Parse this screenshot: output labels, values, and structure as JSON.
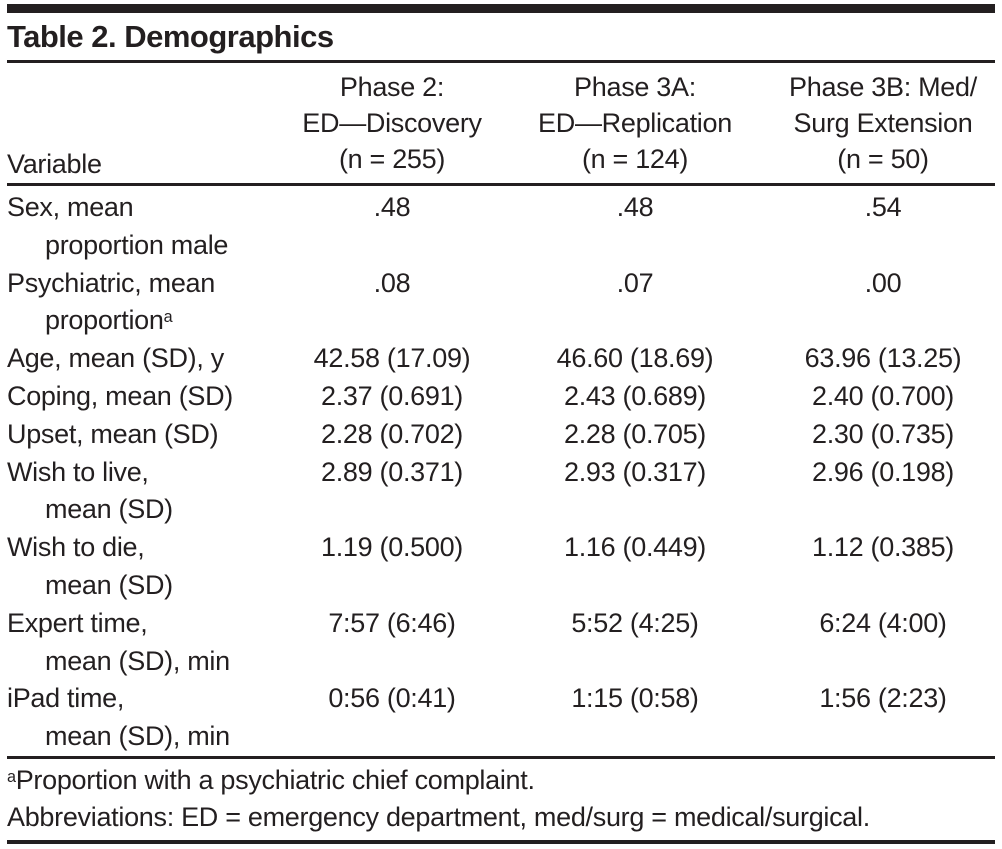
{
  "title": "Table 2. Demographics",
  "colors": {
    "text": "#231f20",
    "rule": "#231f20",
    "background": "#ffffff"
  },
  "header": {
    "variable": "Variable",
    "cols": [
      {
        "line1": "Phase 2:",
        "line2": "ED—Discovery",
        "line3": "(n = 255)"
      },
      {
        "line1": "Phase 3A:",
        "line2": "ED—Replication",
        "line3": "(n = 124)"
      },
      {
        "line1": "Phase 3B: Med/",
        "line2": "Surg Extension",
        "line3": "(n = 50)"
      }
    ]
  },
  "rows": [
    {
      "label1": "Sex, mean",
      "label2": "proportion male",
      "sup": "",
      "values": [
        ".48",
        ".48",
        ".54"
      ]
    },
    {
      "label1": "Psychiatric, mean",
      "label2": "proportion",
      "sup": "a",
      "values": [
        ".08",
        ".07",
        ".00"
      ]
    },
    {
      "label1": "Age, mean (SD), y",
      "label2": "",
      "sup": "",
      "values": [
        "42.58 (17.09)",
        "46.60 (18.69)",
        "63.96 (13.25)"
      ]
    },
    {
      "label1": "Coping, mean (SD)",
      "label2": "",
      "sup": "",
      "values": [
        "2.37 (0.691)",
        "2.43 (0.689)",
        "2.40 (0.700)"
      ]
    },
    {
      "label1": "Upset, mean (SD)",
      "label2": "",
      "sup": "",
      "values": [
        "2.28 (0.702)",
        "2.28 (0.705)",
        "2.30 (0.735)"
      ]
    },
    {
      "label1": "Wish to live,",
      "label2": "mean (SD)",
      "sup": "",
      "values": [
        "2.89 (0.371)",
        "2.93 (0.317)",
        "2.96 (0.198)"
      ]
    },
    {
      "label1": "Wish to die,",
      "label2": "mean (SD)",
      "sup": "",
      "values": [
        "1.19 (0.500)",
        "1.16 (0.449)",
        "1.12 (0.385)"
      ]
    },
    {
      "label1": "Expert time,",
      "label2": "mean (SD), min",
      "sup": "",
      "values": [
        "7:57 (6:46)",
        "5:52 (4:25)",
        "6:24 (4:00)"
      ]
    },
    {
      "label1": "iPad time,",
      "label2": "mean (SD), min",
      "sup": "",
      "values": [
        "0:56 (0:41)",
        "1:15 (0:58)",
        "1:56 (2:23)"
      ]
    }
  ],
  "footnotes": {
    "a_marker": "a",
    "a_text": "Proportion with a psychiatric chief complaint.",
    "abbreviations": "Abbreviations: ED = emergency department, med/surg = medical/surgical."
  }
}
